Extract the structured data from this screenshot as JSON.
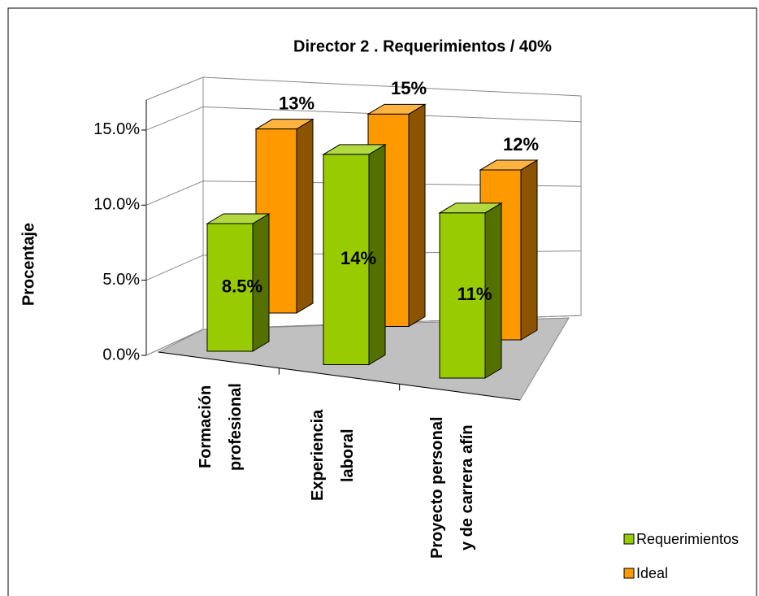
{
  "chart_data": {
    "type": "bar3d",
    "title": "Director 2 . Requerimientos / 40%",
    "y_label": "Procentaje",
    "categories": [
      "Formación profesional",
      "Experiencia laboral",
      "Proyecto personal y de carrera afín"
    ],
    "series": [
      {
        "name": "Requerimientos",
        "color": "#99cc00",
        "values": [
          8.5,
          14,
          11
        ],
        "value_labels": [
          "8.5%",
          "14%",
          "11%"
        ]
      },
      {
        "name": "Ideal",
        "color": "#ff9900",
        "values": [
          13,
          15,
          12
        ],
        "value_labels": [
          "13%",
          "15%",
          "12%"
        ]
      }
    ],
    "ylim": [
      0,
      17
    ],
    "yticks": [
      {
        "value": 0,
        "label": "0.0%"
      },
      {
        "value": 5,
        "label": "5.0%"
      },
      {
        "value": 10,
        "label": "10.0%"
      },
      {
        "value": 15,
        "label": "15.0%"
      }
    ],
    "grid": true,
    "legend": "bottom-right"
  }
}
